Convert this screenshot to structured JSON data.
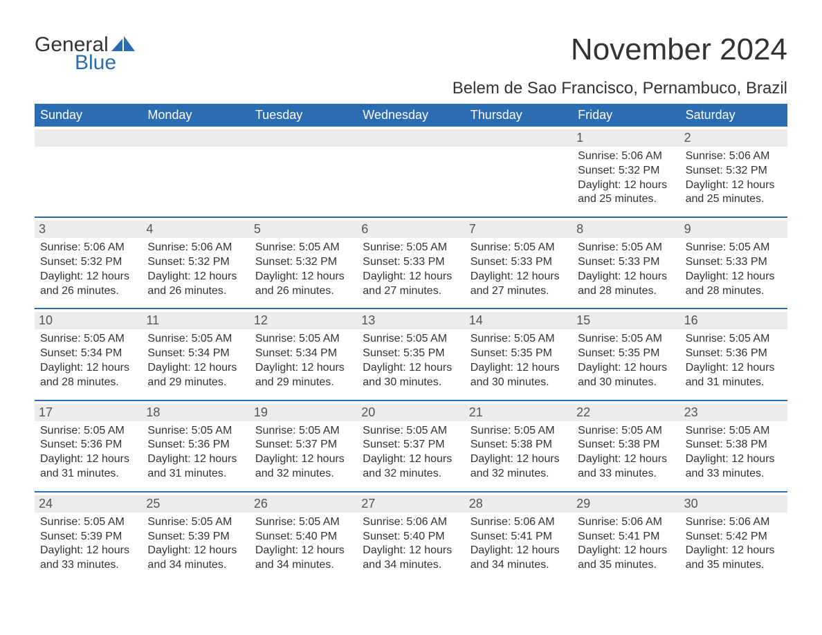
{
  "logo": {
    "text1": "General",
    "text2": "Blue",
    "accent_color": "#2b6cb3"
  },
  "title": "November 2024",
  "location": "Belem de Sao Francisco, Pernambuco, Brazil",
  "colors": {
    "header_bg": "#2b6cb3",
    "header_text": "#ffffff",
    "daynum_bg": "#ececec",
    "text": "#333333",
    "week_border": "#2b6cb3"
  },
  "fonts": {
    "title_size_pt": 33,
    "location_size_pt": 18,
    "header_size_pt": 14,
    "body_size_pt": 12
  },
  "weekdays": [
    "Sunday",
    "Monday",
    "Tuesday",
    "Wednesday",
    "Thursday",
    "Friday",
    "Saturday"
  ],
  "weeks": [
    [
      null,
      null,
      null,
      null,
      null,
      {
        "d": "1",
        "sunrise": "5:06 AM",
        "sunset": "5:32 PM",
        "daylight": "12 hours and 25 minutes."
      },
      {
        "d": "2",
        "sunrise": "5:06 AM",
        "sunset": "5:32 PM",
        "daylight": "12 hours and 25 minutes."
      }
    ],
    [
      {
        "d": "3",
        "sunrise": "5:06 AM",
        "sunset": "5:32 PM",
        "daylight": "12 hours and 26 minutes."
      },
      {
        "d": "4",
        "sunrise": "5:06 AM",
        "sunset": "5:32 PM",
        "daylight": "12 hours and 26 minutes."
      },
      {
        "d": "5",
        "sunrise": "5:05 AM",
        "sunset": "5:32 PM",
        "daylight": "12 hours and 26 minutes."
      },
      {
        "d": "6",
        "sunrise": "5:05 AM",
        "sunset": "5:33 PM",
        "daylight": "12 hours and 27 minutes."
      },
      {
        "d": "7",
        "sunrise": "5:05 AM",
        "sunset": "5:33 PM",
        "daylight": "12 hours and 27 minutes."
      },
      {
        "d": "8",
        "sunrise": "5:05 AM",
        "sunset": "5:33 PM",
        "daylight": "12 hours and 28 minutes."
      },
      {
        "d": "9",
        "sunrise": "5:05 AM",
        "sunset": "5:33 PM",
        "daylight": "12 hours and 28 minutes."
      }
    ],
    [
      {
        "d": "10",
        "sunrise": "5:05 AM",
        "sunset": "5:34 PM",
        "daylight": "12 hours and 28 minutes."
      },
      {
        "d": "11",
        "sunrise": "5:05 AM",
        "sunset": "5:34 PM",
        "daylight": "12 hours and 29 minutes."
      },
      {
        "d": "12",
        "sunrise": "5:05 AM",
        "sunset": "5:34 PM",
        "daylight": "12 hours and 29 minutes."
      },
      {
        "d": "13",
        "sunrise": "5:05 AM",
        "sunset": "5:35 PM",
        "daylight": "12 hours and 30 minutes."
      },
      {
        "d": "14",
        "sunrise": "5:05 AM",
        "sunset": "5:35 PM",
        "daylight": "12 hours and 30 minutes."
      },
      {
        "d": "15",
        "sunrise": "5:05 AM",
        "sunset": "5:35 PM",
        "daylight": "12 hours and 30 minutes."
      },
      {
        "d": "16",
        "sunrise": "5:05 AM",
        "sunset": "5:36 PM",
        "daylight": "12 hours and 31 minutes."
      }
    ],
    [
      {
        "d": "17",
        "sunrise": "5:05 AM",
        "sunset": "5:36 PM",
        "daylight": "12 hours and 31 minutes."
      },
      {
        "d": "18",
        "sunrise": "5:05 AM",
        "sunset": "5:36 PM",
        "daylight": "12 hours and 31 minutes."
      },
      {
        "d": "19",
        "sunrise": "5:05 AM",
        "sunset": "5:37 PM",
        "daylight": "12 hours and 32 minutes."
      },
      {
        "d": "20",
        "sunrise": "5:05 AM",
        "sunset": "5:37 PM",
        "daylight": "12 hours and 32 minutes."
      },
      {
        "d": "21",
        "sunrise": "5:05 AM",
        "sunset": "5:38 PM",
        "daylight": "12 hours and 32 minutes."
      },
      {
        "d": "22",
        "sunrise": "5:05 AM",
        "sunset": "5:38 PM",
        "daylight": "12 hours and 33 minutes."
      },
      {
        "d": "23",
        "sunrise": "5:05 AM",
        "sunset": "5:38 PM",
        "daylight": "12 hours and 33 minutes."
      }
    ],
    [
      {
        "d": "24",
        "sunrise": "5:05 AM",
        "sunset": "5:39 PM",
        "daylight": "12 hours and 33 minutes."
      },
      {
        "d": "25",
        "sunrise": "5:05 AM",
        "sunset": "5:39 PM",
        "daylight": "12 hours and 34 minutes."
      },
      {
        "d": "26",
        "sunrise": "5:05 AM",
        "sunset": "5:40 PM",
        "daylight": "12 hours and 34 minutes."
      },
      {
        "d": "27",
        "sunrise": "5:06 AM",
        "sunset": "5:40 PM",
        "daylight": "12 hours and 34 minutes."
      },
      {
        "d": "28",
        "sunrise": "5:06 AM",
        "sunset": "5:41 PM",
        "daylight": "12 hours and 34 minutes."
      },
      {
        "d": "29",
        "sunrise": "5:06 AM",
        "sunset": "5:41 PM",
        "daylight": "12 hours and 35 minutes."
      },
      {
        "d": "30",
        "sunrise": "5:06 AM",
        "sunset": "5:42 PM",
        "daylight": "12 hours and 35 minutes."
      }
    ]
  ],
  "labels": {
    "sunrise": "Sunrise: ",
    "sunset": "Sunset: ",
    "daylight": "Daylight: "
  }
}
